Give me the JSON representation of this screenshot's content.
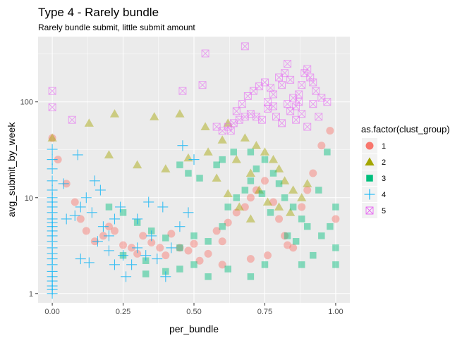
{
  "chart_data": {
    "type": "scatter",
    "title": "Type 4 - Rarely bundle",
    "subtitle": "Rarely bundle submit, little submit amount",
    "xlabel": "per_bundle",
    "ylabel": "avg_submit_by_week",
    "x_scale": "linear",
    "y_scale": "log10",
    "xlim": [
      -0.05,
      1.05
    ],
    "ylim": [
      0.8,
      480
    ],
    "x_ticks": [
      0,
      0.25,
      0.5,
      0.75,
      1
    ],
    "x_tick_labels": [
      "0.00",
      "0.25",
      "0.50",
      "0.75",
      "1.00"
    ],
    "y_ticks": [
      1,
      10,
      100
    ],
    "y_tick_labels": [
      "1",
      "10",
      "100"
    ],
    "grid": true,
    "legend": {
      "title": "as.factor(clust_group)",
      "placement": "right"
    },
    "series": [
      {
        "name": "1",
        "shape": "circle",
        "color": "#F8766D",
        "points": [
          [
            0,
            42
          ],
          [
            0.02,
            25
          ],
          [
            0.05,
            14
          ],
          [
            0.08,
            9
          ],
          [
            0.1,
            6
          ],
          [
            0.12,
            4.5
          ],
          [
            0.15,
            3.5
          ],
          [
            0.18,
            4
          ],
          [
            0.2,
            5
          ],
          [
            0.22,
            4.5
          ],
          [
            0.25,
            3.2
          ],
          [
            0.28,
            3
          ],
          [
            0.3,
            2.6
          ],
          [
            0.32,
            4
          ],
          [
            0.35,
            3.4
          ],
          [
            0.38,
            3
          ],
          [
            0.4,
            2.5
          ],
          [
            0.42,
            4.2
          ],
          [
            0.45,
            3
          ],
          [
            0.48,
            2.8
          ],
          [
            0.5,
            3.3
          ],
          [
            0.52,
            2.2
          ],
          [
            0.55,
            2.6
          ],
          [
            0.58,
            4.5
          ],
          [
            0.6,
            3.5
          ],
          [
            0.62,
            5.5
          ],
          [
            0.65,
            7
          ],
          [
            0.68,
            8
          ],
          [
            0.7,
            10
          ],
          [
            0.72,
            12
          ],
          [
            0.75,
            15
          ],
          [
            0.78,
            9
          ],
          [
            0.8,
            6
          ],
          [
            0.82,
            4
          ],
          [
            0.85,
            3
          ],
          [
            0.88,
            8
          ],
          [
            0.9,
            12
          ],
          [
            0.92,
            18
          ],
          [
            0.95,
            35
          ],
          [
            0.98,
            50
          ],
          [
            1,
            6
          ],
          [
            0.6,
            2
          ],
          [
            0.7,
            2.3
          ],
          [
            0.76,
            2.5
          ],
          [
            0.83,
            3.2
          ]
        ]
      },
      {
        "name": "2",
        "shape": "triangle",
        "color": "#A3A500",
        "points": [
          [
            0,
            42
          ],
          [
            0.13,
            60
          ],
          [
            0.22,
            75
          ],
          [
            0.36,
            70
          ],
          [
            0.45,
            75
          ],
          [
            0.54,
            55
          ],
          [
            0.62,
            60
          ],
          [
            0.2,
            28
          ],
          [
            0.3,
            22
          ],
          [
            0.55,
            30
          ],
          [
            0.6,
            40
          ],
          [
            0.68,
            42
          ],
          [
            0.72,
            35
          ],
          [
            0.75,
            30
          ],
          [
            0.78,
            25
          ],
          [
            0.8,
            20
          ],
          [
            0.82,
            15
          ],
          [
            0.85,
            12
          ],
          [
            0.88,
            10
          ],
          [
            0.9,
            14
          ],
          [
            0.65,
            25
          ],
          [
            0.7,
            18
          ],
          [
            0.73,
            12
          ],
          [
            0.76,
            9
          ],
          [
            0.8,
            8
          ],
          [
            0.84,
            7
          ],
          [
            0.58,
            16
          ],
          [
            0.62,
            11
          ],
          [
            0.66,
            8
          ],
          [
            0.7,
            6
          ],
          [
            0.4,
            20
          ],
          [
            0.48,
            26
          ]
        ]
      },
      {
        "name": "3",
        "shape": "square",
        "color": "#00BF7D",
        "points": [
          [
            0.2,
            8
          ],
          [
            0.25,
            7
          ],
          [
            0.3,
            5.5
          ],
          [
            0.35,
            4.5
          ],
          [
            0.4,
            3.8
          ],
          [
            0.45,
            3
          ],
          [
            0.5,
            4
          ],
          [
            0.55,
            3.5
          ],
          [
            0.6,
            5
          ],
          [
            0.62,
            8
          ],
          [
            0.65,
            10
          ],
          [
            0.68,
            12
          ],
          [
            0.7,
            15
          ],
          [
            0.72,
            20
          ],
          [
            0.75,
            25
          ],
          [
            0.78,
            18
          ],
          [
            0.8,
            14
          ],
          [
            0.82,
            10
          ],
          [
            0.85,
            8
          ],
          [
            0.88,
            6
          ],
          [
            0.9,
            5
          ],
          [
            0.95,
            4
          ],
          [
            1,
            2
          ],
          [
            1,
            3
          ],
          [
            0.98,
            5
          ],
          [
            0.92,
            2.5
          ],
          [
            0.88,
            2
          ],
          [
            0.75,
            2
          ],
          [
            0.7,
            1.5
          ],
          [
            0.62,
            1.8
          ],
          [
            0.55,
            1.5
          ],
          [
            0.5,
            2
          ],
          [
            0.45,
            1.8
          ],
          [
            0.4,
            1.7
          ],
          [
            0.33,
            1.6
          ],
          [
            0.33,
            2.2
          ],
          [
            0.25,
            2.5
          ],
          [
            0.45,
            22
          ],
          [
            0.48,
            18
          ],
          [
            0.52,
            16
          ],
          [
            0.58,
            22
          ],
          [
            0.6,
            25
          ],
          [
            0.64,
            30
          ],
          [
            0.7,
            30
          ],
          [
            0.74,
            11
          ],
          [
            0.77,
            7
          ],
          [
            0.83,
            4
          ],
          [
            0.86,
            3.5
          ],
          [
            0.94,
            12
          ],
          [
            0.97,
            30
          ],
          [
            1,
            8
          ]
        ]
      },
      {
        "name": "4",
        "shape": "plus",
        "color": "#00B0F6",
        "points": [
          [
            0,
            1
          ],
          [
            0,
            1.1
          ],
          [
            0,
            1.2
          ],
          [
            0,
            1.35
          ],
          [
            0,
            1.5
          ],
          [
            0,
            1.7
          ],
          [
            0,
            2
          ],
          [
            0,
            2.3
          ],
          [
            0,
            2.6
          ],
          [
            0,
            3
          ],
          [
            0,
            3.5
          ],
          [
            0,
            4
          ],
          [
            0,
            4.5
          ],
          [
            0,
            5
          ],
          [
            0,
            5.5
          ],
          [
            0,
            6
          ],
          [
            0,
            7
          ],
          [
            0,
            8
          ],
          [
            0,
            9
          ],
          [
            0,
            10
          ],
          [
            0,
            12
          ],
          [
            0,
            15
          ],
          [
            0,
            20
          ],
          [
            0,
            25
          ],
          [
            0,
            32
          ],
          [
            0.04,
            14
          ],
          [
            0.05,
            6
          ],
          [
            0.08,
            6.5
          ],
          [
            0.09,
            28
          ],
          [
            0.1,
            8
          ],
          [
            0.12,
            10
          ],
          [
            0.14,
            7
          ],
          [
            0.15,
            15
          ],
          [
            0.17,
            12
          ],
          [
            0.18,
            5
          ],
          [
            0.2,
            4
          ],
          [
            0.22,
            6
          ],
          [
            0.24,
            8
          ],
          [
            0.25,
            2.5
          ],
          [
            0.26,
            1.5
          ],
          [
            0.28,
            2
          ],
          [
            0.3,
            3
          ],
          [
            0.33,
            2.5
          ],
          [
            0.35,
            4
          ],
          [
            0.37,
            2.3
          ],
          [
            0.4,
            1.5
          ],
          [
            0.42,
            3
          ],
          [
            0.45,
            5
          ],
          [
            0.48,
            7
          ],
          [
            0.46,
            35
          ],
          [
            0.5,
            25
          ],
          [
            0.1,
            2.3
          ],
          [
            0.13,
            2.1
          ],
          [
            0.16,
            3.5
          ],
          [
            0.2,
            2.8
          ],
          [
            0.22,
            2
          ],
          [
            0.3,
            6
          ],
          [
            0.34,
            9
          ],
          [
            0.39,
            8
          ]
        ]
      },
      {
        "name": "5",
        "shape": "crossbox",
        "color": "#E76BF3",
        "points": [
          [
            0,
            130
          ],
          [
            0,
            88
          ],
          [
            0.07,
            65
          ],
          [
            0.46,
            130
          ],
          [
            0.53,
            150
          ],
          [
            0.54,
            320
          ],
          [
            0.68,
            380
          ],
          [
            0.58,
            55
          ],
          [
            0.6,
            50
          ],
          [
            0.63,
            50
          ],
          [
            0.65,
            80
          ],
          [
            0.67,
            95
          ],
          [
            0.69,
            115
          ],
          [
            0.71,
            130
          ],
          [
            0.73,
            145
          ],
          [
            0.75,
            160
          ],
          [
            0.77,
            140
          ],
          [
            0.78,
            120
          ],
          [
            0.8,
            180
          ],
          [
            0.81,
            150
          ],
          [
            0.82,
            200
          ],
          [
            0.83,
            250
          ],
          [
            0.84,
            170
          ],
          [
            0.85,
            110
          ],
          [
            0.86,
            90
          ],
          [
            0.87,
            120
          ],
          [
            0.88,
            150
          ],
          [
            0.89,
            200
          ],
          [
            0.9,
            220
          ],
          [
            0.91,
            180
          ],
          [
            0.92,
            160
          ],
          [
            0.93,
            130
          ],
          [
            0.95,
            110
          ],
          [
            0.97,
            100
          ],
          [
            0.7,
            75
          ],
          [
            0.72,
            70
          ],
          [
            0.74,
            65
          ],
          [
            0.76,
            85
          ],
          [
            0.79,
            70
          ],
          [
            0.81,
            60
          ],
          [
            0.84,
            80
          ],
          [
            0.86,
            65
          ],
          [
            0.88,
            75
          ],
          [
            0.9,
            55
          ],
          [
            0.62,
            55
          ],
          [
            0.64,
            60
          ],
          [
            0.66,
            65
          ],
          [
            0.68,
            70
          ],
          [
            0.83,
            95
          ],
          [
            0.87,
            100
          ],
          [
            0.94,
            70
          ],
          [
            0.92,
            95
          ],
          [
            0.76,
            100
          ],
          [
            0.78,
            90
          ]
        ]
      }
    ]
  }
}
